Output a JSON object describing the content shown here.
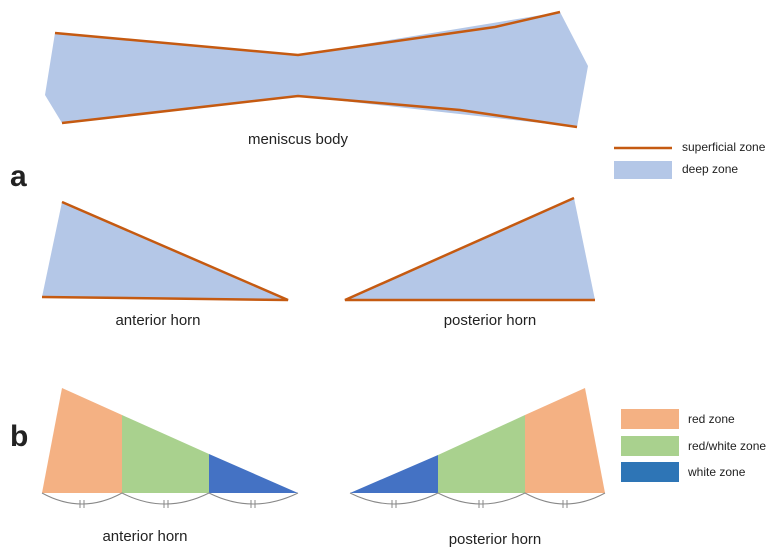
{
  "panel_a": {
    "label": "a",
    "body_label": "meniscus body",
    "anterior_label": "anterior horn",
    "posterior_label": "posterior horn",
    "legend": [
      "superficial zone",
      "deep zone"
    ]
  },
  "panel_b": {
    "label": "b",
    "anterior_label": "anterior horn",
    "posterior_label": "posterior horn",
    "legend": [
      "red zone",
      "red/white zone",
      "white zone"
    ]
  }
}
